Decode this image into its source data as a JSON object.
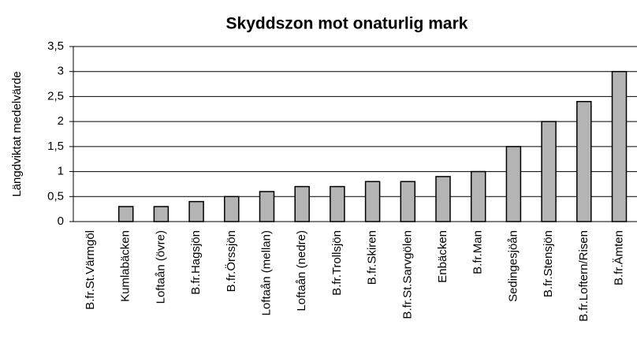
{
  "chart_data": {
    "type": "bar",
    "title": "Skyddszon mot onaturlig mark",
    "y_label": "Längdviktat medelvärde",
    "categories": [
      "B.fr.St.Värmgöl",
      "Kumlabäcken",
      "Loftaån (övre)",
      "B.fr.Hagsjön",
      "B.fr.Örssjön",
      "Loftaån (mellan)",
      "Loftaån (nedre)",
      "B.fr.Trollsjön",
      "B.fr.Skiren",
      "B.fr.St.Sarvgölen",
      "Enbäcken",
      "B.fr.Man",
      "Sedingesjöån",
      "B.fr.Stensjön",
      "B.fr.Loftern/Risen",
      "B.fr.Ämten"
    ],
    "values": [
      0,
      0.3,
      0.3,
      0.4,
      0.5,
      0.6,
      0.7,
      0.7,
      0.8,
      0.8,
      0.9,
      1.0,
      1.5,
      2.0,
      2.4,
      3.0
    ],
    "color": "#b4b4b4",
    "ylim": [
      0,
      3.5
    ],
    "yticks": [
      0,
      {
        "value": 0.5,
        "label": "0,5"
      },
      1,
      {
        "value": 1.5,
        "label": "1,5"
      },
      2,
      {
        "value": 2.5,
        "label": "2,5"
      },
      3,
      {
        "value": 3.5,
        "label": "3,5"
      }
    ],
    "grid": true
  }
}
